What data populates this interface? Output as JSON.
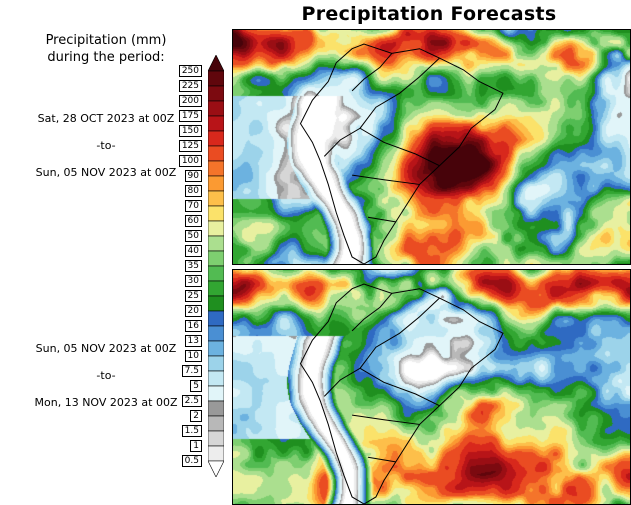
{
  "title": "Precipitation Forecasts",
  "legend": {
    "heading_line1": "Precipitation (mm)",
    "heading_line2": "during the period:",
    "unit": "mm",
    "levels_top_to_bottom": [
      "250",
      "225",
      "200",
      "175",
      "150",
      "125",
      "100",
      "90",
      "80",
      "70",
      "60",
      "50",
      "40",
      "35",
      "30",
      "25",
      "20",
      "16",
      "13",
      "10",
      "7.5",
      "5",
      "2.5",
      "2",
      "1.5",
      "1",
      "0.5"
    ],
    "segment_colors_top_to_bottom": [
      "#47030a",
      "#60060c",
      "#7c0a10",
      "#9a0e14",
      "#b81418",
      "#d8281c",
      "#ea4c22",
      "#f4742a",
      "#fb9a32",
      "#fdbf4a",
      "#fbe26a",
      "#e8f0a0",
      "#abdf8f",
      "#7ecf70",
      "#52bb52",
      "#32a632",
      "#1f8f1f",
      "#2f6ac2",
      "#4a8fd3",
      "#6cb2e0",
      "#9cd3ea",
      "#c3e8f3",
      "#e1f5f9",
      "#999999",
      "#b8b8b8",
      "#d6d6d6",
      "#ededed",
      "#ffffff"
    ]
  },
  "panels": [
    {
      "id": "top",
      "from": "Sat, 28 OCT 2023 at 00Z",
      "separator": "-to-",
      "to": "Sun, 05 NOV 2023 at 00Z"
    },
    {
      "id": "bottom",
      "from": "Sun, 05 NOV 2023 at 00Z",
      "separator": "-to-",
      "to": "Mon, 13 NOV 2023 at 00Z"
    }
  ]
}
